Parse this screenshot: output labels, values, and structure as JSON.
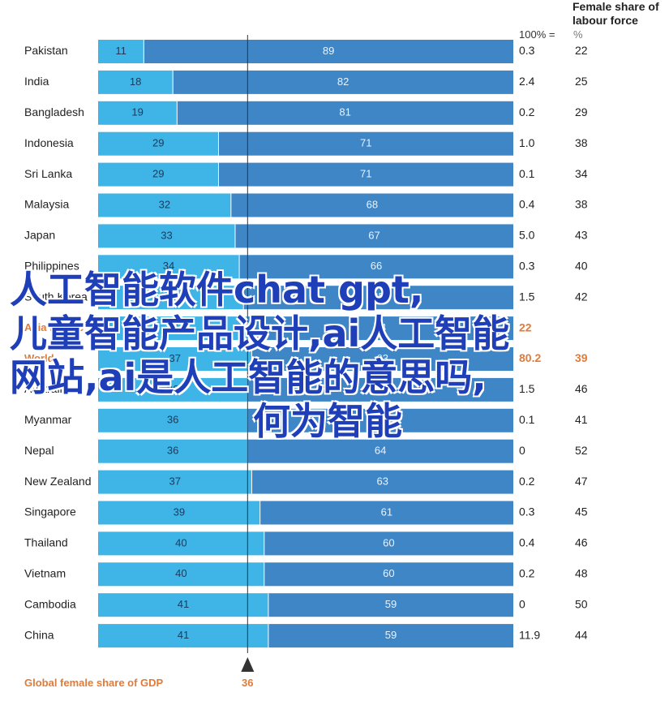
{
  "header": {
    "female_share_title": "Female share of labour force",
    "pct_label": "100% =",
    "unit_label": "%"
  },
  "footer": {
    "label": "Global female share of GDP",
    "value": "36"
  },
  "watermark": {
    "line1": "人工智能软件chat gpt,",
    "line2": "儿童智能产品设计,ai人工智能",
    "line3": "网站,ai是人工智能的意思吗,",
    "line4": "何为智能"
  },
  "colors": {
    "female_bar": "#3fb4e6",
    "male_bar": "#3f86c7",
    "highlight": "#e07b3a",
    "marker": "#333333"
  },
  "chart_data": {
    "type": "bar",
    "orientation": "horizontal-stacked-100",
    "categories": [
      "Pakistan",
      "India",
      "Bangladesh",
      "Indonesia",
      "Sri Lanka",
      "Malaysia",
      "Japan",
      "Philippines",
      "South Korea",
      "Asia Pacific",
      "World",
      "Australia",
      "Myanmar",
      "Nepal",
      "New Zealand",
      "Singapore",
      "Thailand",
      "Vietnam",
      "Cambodia",
      "China"
    ],
    "series": [
      {
        "values": [
          11,
          18,
          19,
          29,
          29,
          32,
          33,
          34,
          35,
          36,
          37,
          36,
          36,
          36,
          37,
          39,
          40,
          40,
          41,
          41
        ]
      },
      {
        "values": [
          89,
          82,
          81,
          71,
          71,
          68,
          67,
          66,
          65,
          64,
          63,
          64,
          64,
          64,
          63,
          61,
          60,
          60,
          59,
          59
        ]
      }
    ],
    "gdp_100pct": [
      "0.3",
      "2.4",
      "0.2",
      "1.0",
      "0.1",
      "0.4",
      "5.0",
      "0.3",
      "1.5",
      "22",
      "80.2",
      "1.5",
      "0.1",
      "0",
      "0.2",
      "0.3",
      "0.4",
      "0.2",
      "0",
      "11.9"
    ],
    "female_labour_share": [
      "22",
      "25",
      "29",
      "38",
      "34",
      "38",
      "43",
      "40",
      "42",
      "",
      "39",
      "46",
      "41",
      "52",
      "47",
      "45",
      "46",
      "48",
      "50",
      "44"
    ],
    "highlighted": [
      "Asia Pacific",
      "World"
    ],
    "reference_line": 36,
    "xlim": [
      0,
      100
    ]
  }
}
